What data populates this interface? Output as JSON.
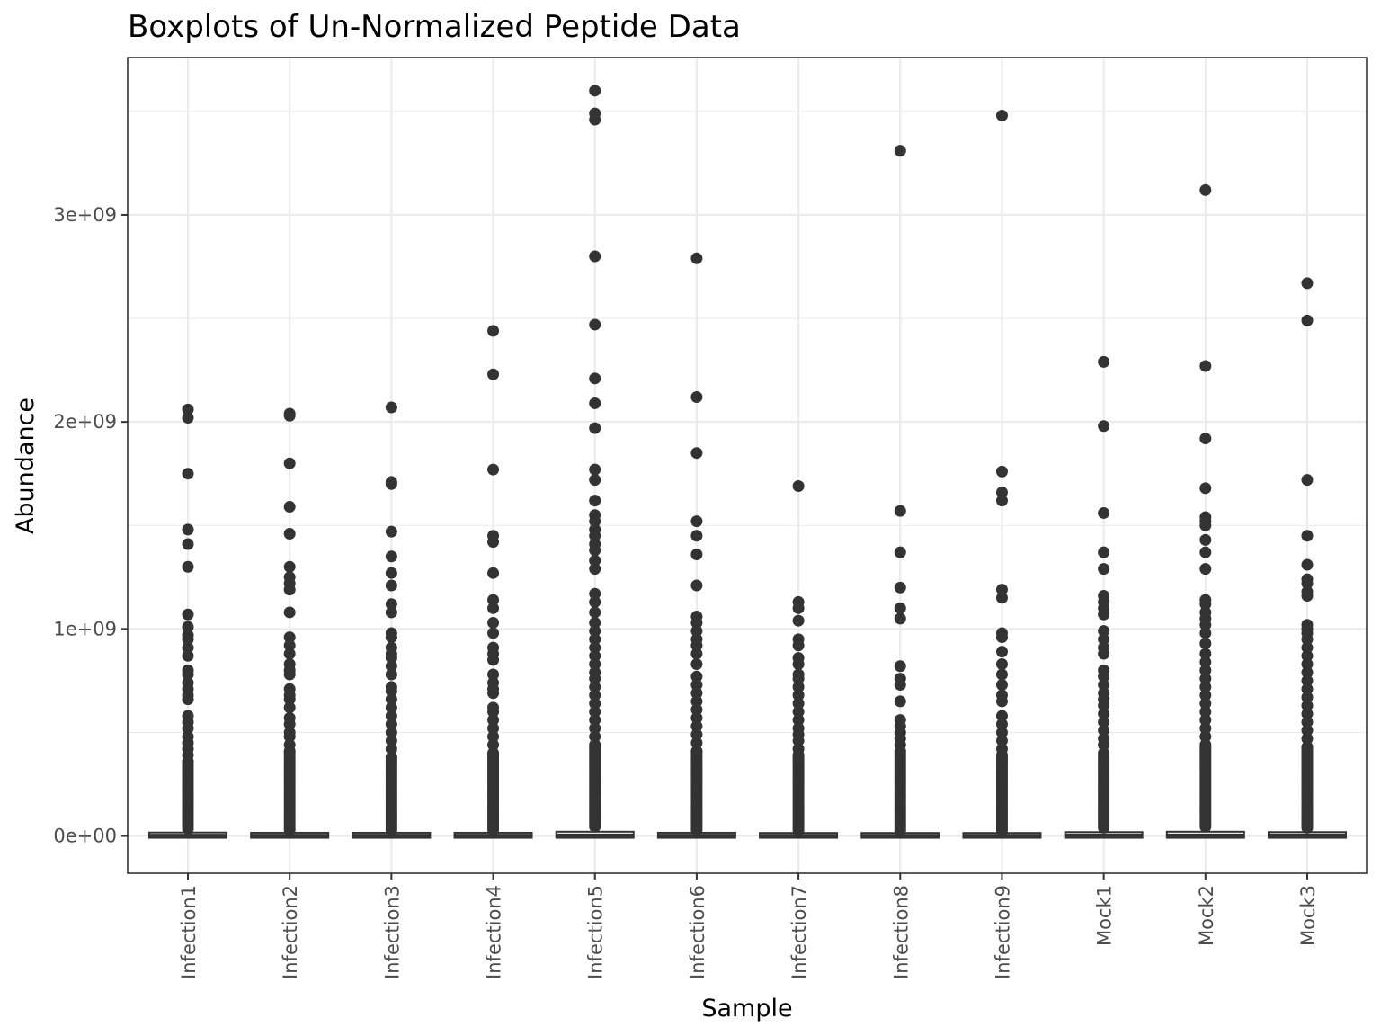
{
  "chart_data": {
    "type": "boxplot",
    "title": "Boxplots of Un-Normalized Peptide Data",
    "xlabel": "Sample",
    "ylabel": "Abundance",
    "ylim": [
      -180000000,
      3760000000
    ],
    "yticks": [
      0,
      1000000000,
      2000000000,
      3000000000
    ],
    "ytick_labels": [
      "0e+00",
      "1e+09",
      "2e+09",
      "3e+09"
    ],
    "grid": true,
    "theme": "bw",
    "colors": {
      "points": "#333333",
      "grid": "#ebebeb",
      "panel_border": "#333333",
      "tick_text": "#4d4d4d"
    },
    "categories": [
      "Infection1",
      "Infection2",
      "Infection3",
      "Infection4",
      "Infection5",
      "Infection6",
      "Infection7",
      "Infection8",
      "Infection9",
      "Mock1",
      "Mock2",
      "Mock3"
    ],
    "boxes": [
      {
        "q1": 0,
        "median": 2000000,
        "q3": 8000000,
        "whisker_high": 25000000
      },
      {
        "q1": 0,
        "median": 2000000,
        "q3": 7000000,
        "whisker_high": 20000000
      },
      {
        "q1": 0,
        "median": 2000000,
        "q3": 7000000,
        "whisker_high": 20000000
      },
      {
        "q1": 0,
        "median": 2000000,
        "q3": 7000000,
        "whisker_high": 20000000
      },
      {
        "q1": 0,
        "median": 3000000,
        "q3": 12000000,
        "whisker_high": 35000000
      },
      {
        "q1": 0,
        "median": 2000000,
        "q3": 7000000,
        "whisker_high": 20000000
      },
      {
        "q1": 0,
        "median": 1500000,
        "q3": 6000000,
        "whisker_high": 18000000
      },
      {
        "q1": 0,
        "median": 1500000,
        "q3": 6000000,
        "whisker_high": 18000000
      },
      {
        "q1": 0,
        "median": 1500000,
        "q3": 6000000,
        "whisker_high": 18000000
      },
      {
        "q1": 0,
        "median": 3000000,
        "q3": 10000000,
        "whisker_high": 30000000
      },
      {
        "q1": 0,
        "median": 3000000,
        "q3": 12000000,
        "whisker_high": 35000000
      },
      {
        "q1": 0,
        "median": 3000000,
        "q3": 10000000,
        "whisker_high": 30000000
      }
    ],
    "outliers": [
      [
        2060000000,
        2020000000,
        1750000000,
        1480000000,
        1410000000,
        1300000000,
        1070000000,
        1010000000,
        970000000,
        950000000,
        910000000,
        870000000,
        800000000,
        780000000,
        740000000,
        710000000,
        680000000,
        660000000,
        580000000,
        550000000,
        520000000,
        480000000,
        450000000,
        420000000,
        390000000,
        360000000
      ],
      [
        2040000000,
        2030000000,
        1800000000,
        1590000000,
        1460000000,
        1300000000,
        1250000000,
        1220000000,
        1190000000,
        1080000000,
        960000000,
        920000000,
        880000000,
        830000000,
        800000000,
        780000000,
        710000000,
        680000000,
        660000000,
        620000000,
        570000000,
        540000000,
        500000000,
        480000000,
        440000000,
        410000000
      ],
      [
        2070000000,
        1710000000,
        1700000000,
        1470000000,
        1350000000,
        1270000000,
        1210000000,
        1120000000,
        1080000000,
        980000000,
        960000000,
        910000000,
        880000000,
        860000000,
        820000000,
        780000000,
        720000000,
        700000000,
        660000000,
        620000000,
        580000000,
        540000000,
        500000000,
        460000000,
        420000000,
        380000000
      ],
      [
        2440000000,
        2230000000,
        1770000000,
        1450000000,
        1420000000,
        1270000000,
        1140000000,
        1100000000,
        1030000000,
        980000000,
        910000000,
        880000000,
        850000000,
        780000000,
        740000000,
        710000000,
        690000000,
        620000000,
        600000000,
        560000000,
        520000000,
        480000000,
        440000000,
        400000000
      ],
      [
        3600000000,
        3490000000,
        3460000000,
        2800000000,
        2470000000,
        2210000000,
        2090000000,
        1970000000,
        1770000000,
        1720000000,
        1620000000,
        1550000000,
        1520000000,
        1480000000,
        1450000000,
        1410000000,
        1380000000,
        1330000000,
        1290000000,
        1170000000,
        1130000000,
        1080000000,
        1030000000,
        990000000,
        950000000,
        910000000,
        870000000,
        830000000,
        790000000,
        760000000,
        720000000,
        680000000,
        640000000,
        600000000,
        560000000,
        520000000,
        480000000,
        440000000
      ],
      [
        2790000000,
        2120000000,
        1850000000,
        1520000000,
        1450000000,
        1360000000,
        1210000000,
        1060000000,
        1030000000,
        990000000,
        950000000,
        920000000,
        880000000,
        830000000,
        770000000,
        730000000,
        690000000,
        650000000,
        610000000,
        570000000,
        530000000,
        490000000,
        450000000,
        410000000
      ],
      [
        1690000000,
        1130000000,
        1100000000,
        1040000000,
        950000000,
        920000000,
        860000000,
        830000000,
        780000000,
        760000000,
        720000000,
        680000000,
        640000000,
        600000000,
        560000000,
        520000000,
        490000000,
        460000000,
        420000000,
        390000000
      ],
      [
        3310000000,
        1570000000,
        1370000000,
        1200000000,
        1100000000,
        1050000000,
        820000000,
        760000000,
        730000000,
        650000000,
        560000000,
        530000000,
        500000000,
        470000000,
        440000000,
        410000000
      ],
      [
        3480000000,
        1760000000,
        1660000000,
        1620000000,
        1190000000,
        1150000000,
        980000000,
        960000000,
        890000000,
        830000000,
        780000000,
        730000000,
        680000000,
        650000000,
        580000000,
        540000000,
        500000000,
        460000000,
        420000000,
        390000000
      ],
      [
        2290000000,
        1980000000,
        1560000000,
        1370000000,
        1290000000,
        1160000000,
        1130000000,
        1100000000,
        1070000000,
        990000000,
        950000000,
        910000000,
        880000000,
        800000000,
        770000000,
        730000000,
        690000000,
        660000000,
        630000000,
        590000000,
        550000000,
        510000000,
        470000000,
        440000000,
        400000000
      ],
      [
        3120000000,
        2270000000,
        1920000000,
        1680000000,
        1540000000,
        1520000000,
        1500000000,
        1430000000,
        1370000000,
        1290000000,
        1140000000,
        1120000000,
        1080000000,
        1050000000,
        1020000000,
        980000000,
        930000000,
        880000000,
        840000000,
        800000000,
        760000000,
        720000000,
        680000000,
        640000000,
        600000000,
        560000000,
        520000000,
        480000000,
        440000000
      ],
      [
        2670000000,
        2490000000,
        1720000000,
        1450000000,
        1310000000,
        1240000000,
        1220000000,
        1180000000,
        1160000000,
        1020000000,
        1000000000,
        980000000,
        950000000,
        910000000,
        870000000,
        830000000,
        790000000,
        750000000,
        710000000,
        670000000,
        630000000,
        590000000,
        550000000,
        510000000,
        470000000,
        430000000
      ]
    ]
  }
}
